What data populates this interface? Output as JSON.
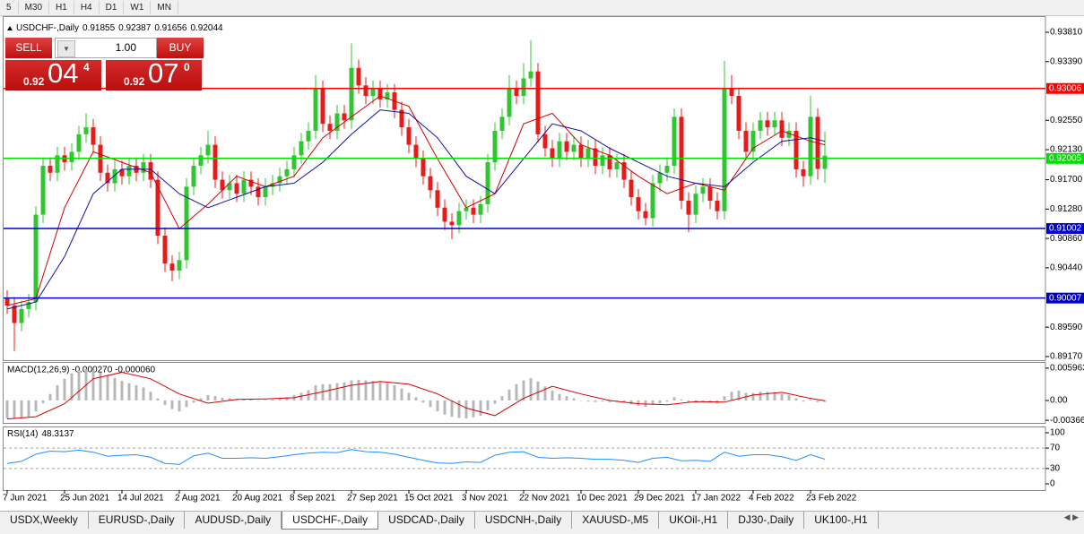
{
  "toolbar": {
    "timeframes": [
      "5",
      "M30",
      "H1",
      "H4",
      "D1",
      "W1",
      "MN"
    ]
  },
  "trade_panel": {
    "sell": "SELL",
    "buy": "BUY",
    "lots": "1.00",
    "sell_big": "0.92",
    "sell_pips": "04",
    "sell_point": "4",
    "buy_big": "0.92",
    "buy_pips": "07",
    "buy_point": "0"
  },
  "chart_data": [
    {
      "type": "candlestick",
      "title": "USDCHF-,Daily",
      "up_color": "#33c433",
      "down_color": "#e41c1c",
      "open": [
        0.9,
        0.899,
        0.8965,
        0.8985,
        0.8995,
        0.912,
        0.919,
        0.918,
        0.9205,
        0.9195,
        0.921,
        0.9235,
        0.9245,
        0.922,
        0.918,
        0.9165,
        0.9185,
        0.9175,
        0.919,
        0.918,
        0.9195,
        0.917,
        0.909,
        0.905,
        0.904,
        0.9055,
        0.916,
        0.919,
        0.9205,
        0.922,
        0.917,
        0.9155,
        0.9165,
        0.915,
        0.917,
        0.916,
        0.9145,
        0.916,
        0.9165,
        0.9175,
        0.9185,
        0.9205,
        0.9225,
        0.924,
        0.93,
        0.925,
        0.924,
        0.9265,
        0.9255,
        0.933,
        0.9305,
        0.929,
        0.93,
        0.9285,
        0.9295,
        0.927,
        0.9245,
        0.922,
        0.92,
        0.9175,
        0.9155,
        0.913,
        0.911,
        0.9105,
        0.9125,
        0.913,
        0.912,
        0.9135,
        0.9195,
        0.924,
        0.926,
        0.93,
        0.929,
        0.9315,
        0.9325,
        0.9235,
        0.9215,
        0.92,
        0.9225,
        0.921,
        0.922,
        0.92,
        0.9215,
        0.919,
        0.9205,
        0.9185,
        0.9195,
        0.917,
        0.9145,
        0.9125,
        0.9115,
        0.9165,
        0.918,
        0.919,
        0.926,
        0.914,
        0.912,
        0.915,
        0.916,
        0.914,
        0.9125,
        0.93,
        0.929,
        0.924,
        0.921,
        0.924,
        0.9255,
        0.9245,
        0.9255,
        0.923,
        0.924,
        0.9185,
        0.9175,
        0.926,
        0.91855
      ],
      "high": [
        0.9012,
        0.9002,
        0.8997,
        0.9007,
        0.9132,
        0.9202,
        0.9202,
        0.9217,
        0.9217,
        0.9222,
        0.9247,
        0.9265,
        0.9257,
        0.9232,
        0.9192,
        0.9197,
        0.9197,
        0.9202,
        0.9202,
        0.9207,
        0.9207,
        0.9182,
        0.9102,
        0.9062,
        0.9067,
        0.9172,
        0.9202,
        0.9217,
        0.924,
        0.9232,
        0.9182,
        0.9177,
        0.9177,
        0.9182,
        0.9182,
        0.9172,
        0.9172,
        0.9177,
        0.9187,
        0.9197,
        0.9217,
        0.9237,
        0.9252,
        0.932,
        0.9312,
        0.9262,
        0.9277,
        0.9277,
        0.9365,
        0.9342,
        0.9317,
        0.9312,
        0.9312,
        0.9307,
        0.9307,
        0.9282,
        0.9257,
        0.9232,
        0.9212,
        0.9187,
        0.9167,
        0.9142,
        0.9122,
        0.9137,
        0.9142,
        0.9142,
        0.9147,
        0.9207,
        0.9252,
        0.9272,
        0.932,
        0.9312,
        0.9337,
        0.937,
        0.9337,
        0.9247,
        0.9227,
        0.9237,
        0.9237,
        0.9232,
        0.9232,
        0.9227,
        0.9227,
        0.9217,
        0.9217,
        0.9207,
        0.9207,
        0.9182,
        0.9157,
        0.9137,
        0.9177,
        0.9192,
        0.9202,
        0.9272,
        0.9272,
        0.9152,
        0.9162,
        0.9172,
        0.9172,
        0.9152,
        0.934,
        0.932,
        0.9302,
        0.9252,
        0.9252,
        0.9267,
        0.9267,
        0.9267,
        0.9267,
        0.9252,
        0.9252,
        0.9197,
        0.929,
        0.9272,
        0.92387
      ],
      "low": [
        0.8978,
        0.8925,
        0.8953,
        0.8973,
        0.8983,
        0.9108,
        0.9168,
        0.9168,
        0.9183,
        0.9183,
        0.9198,
        0.9223,
        0.9208,
        0.9168,
        0.9153,
        0.9153,
        0.9163,
        0.9163,
        0.9168,
        0.9168,
        0.9158,
        0.9078,
        0.9038,
        0.9025,
        0.9028,
        0.9043,
        0.9148,
        0.9178,
        0.9193,
        0.9158,
        0.9143,
        0.9143,
        0.9138,
        0.9138,
        0.9148,
        0.9133,
        0.9133,
        0.9148,
        0.9153,
        0.9163,
        0.9173,
        0.9193,
        0.9213,
        0.9228,
        0.9238,
        0.9228,
        0.9228,
        0.9243,
        0.9243,
        0.9293,
        0.9278,
        0.9278,
        0.9273,
        0.9273,
        0.9258,
        0.9233,
        0.9208,
        0.9188,
        0.9163,
        0.9143,
        0.9118,
        0.9098,
        0.9085,
        0.9093,
        0.9113,
        0.9108,
        0.9108,
        0.9123,
        0.9183,
        0.9228,
        0.9248,
        0.9278,
        0.9278,
        0.9303,
        0.9223,
        0.9203,
        0.9188,
        0.9188,
        0.9198,
        0.9198,
        0.9188,
        0.9188,
        0.9178,
        0.9178,
        0.9173,
        0.9173,
        0.9158,
        0.9133,
        0.9113,
        0.9105,
        0.9103,
        0.9153,
        0.9168,
        0.9178,
        0.9128,
        0.9095,
        0.9108,
        0.9138,
        0.9128,
        0.9113,
        0.9113,
        0.9278,
        0.9228,
        0.9198,
        0.9198,
        0.9228,
        0.9233,
        0.9233,
        0.9218,
        0.9218,
        0.9173,
        0.916,
        0.9163,
        0.917,
        0.91656
      ],
      "close": [
        0.899,
        0.8965,
        0.8985,
        0.8995,
        0.912,
        0.919,
        0.918,
        0.9205,
        0.9195,
        0.921,
        0.9235,
        0.9245,
        0.922,
        0.918,
        0.9165,
        0.9185,
        0.9175,
        0.919,
        0.918,
        0.9195,
        0.917,
        0.909,
        0.905,
        0.904,
        0.9055,
        0.916,
        0.919,
        0.9205,
        0.922,
        0.917,
        0.9155,
        0.9165,
        0.915,
        0.917,
        0.916,
        0.9145,
        0.916,
        0.9165,
        0.9175,
        0.9185,
        0.9205,
        0.9225,
        0.924,
        0.93,
        0.925,
        0.924,
        0.9265,
        0.9255,
        0.933,
        0.9305,
        0.929,
        0.93,
        0.9285,
        0.9295,
        0.927,
        0.9245,
        0.922,
        0.92,
        0.9175,
        0.9155,
        0.913,
        0.911,
        0.9105,
        0.9125,
        0.913,
        0.912,
        0.9135,
        0.9195,
        0.924,
        0.926,
        0.93,
        0.929,
        0.9315,
        0.9325,
        0.9235,
        0.9215,
        0.92,
        0.9225,
        0.921,
        0.922,
        0.92,
        0.9215,
        0.919,
        0.9205,
        0.9185,
        0.9195,
        0.917,
        0.9145,
        0.9125,
        0.9115,
        0.9165,
        0.918,
        0.919,
        0.926,
        0.914,
        0.912,
        0.915,
        0.916,
        0.914,
        0.9125,
        0.93,
        0.929,
        0.924,
        0.921,
        0.924,
        0.9255,
        0.9245,
        0.9255,
        0.923,
        0.924,
        0.9185,
        0.9175,
        0.926,
        0.91855,
        0.92044
      ],
      "overlays": [
        {
          "color": "#d40000",
          "x": [
            0,
            4,
            8,
            12,
            16,
            20,
            24,
            28,
            32,
            36,
            40,
            44,
            48,
            52,
            56,
            60,
            64,
            68,
            72,
            76,
            80,
            84,
            88,
            92,
            96,
            100,
            104,
            108,
            112,
            114
          ],
          "values": [
            0.899,
            0.9,
            0.913,
            0.921,
            0.9195,
            0.918,
            0.91,
            0.9135,
            0.9175,
            0.916,
            0.9175,
            0.923,
            0.926,
            0.929,
            0.9275,
            0.92,
            0.913,
            0.915,
            0.925,
            0.9265,
            0.922,
            0.9205,
            0.9175,
            0.915,
            0.9165,
            0.9155,
            0.9215,
            0.924,
            0.9225,
            0.922
          ]
        },
        {
          "color": "#1010a0",
          "x": [
            0,
            4,
            8,
            12,
            16,
            20,
            24,
            28,
            32,
            36,
            40,
            44,
            48,
            52,
            56,
            60,
            64,
            68,
            72,
            76,
            80,
            84,
            88,
            92,
            96,
            100,
            104,
            108,
            112,
            114
          ],
          "values": [
            0.8985,
            0.8995,
            0.906,
            0.915,
            0.9185,
            0.9185,
            0.915,
            0.913,
            0.9145,
            0.916,
            0.9165,
            0.9195,
            0.9235,
            0.927,
            0.9265,
            0.923,
            0.9175,
            0.915,
            0.92,
            0.925,
            0.924,
            0.9215,
            0.9195,
            0.9175,
            0.9165,
            0.916,
            0.9195,
            0.9225,
            0.923,
            0.9225
          ]
        }
      ],
      "hlines": [
        {
          "value": 0.93006,
          "color": "#ff0000"
        },
        {
          "value": 0.92005,
          "color": "#00e000"
        },
        {
          "value": 0.91002,
          "color": "#0000c8"
        },
        {
          "value": 0.90007,
          "color": "#0000c8"
        }
      ],
      "xlim": [
        -0.5,
        144.75
      ],
      "xticks": [
        {
          "value": 0,
          "label": "7 Jun 2021"
        },
        {
          "value": 8,
          "label": "25 Jun 2021"
        },
        {
          "value": 16,
          "label": "14 Jul 2021"
        },
        {
          "value": 24,
          "label": "2 Aug 2021"
        },
        {
          "value": 32,
          "label": "20 Aug 2021"
        },
        {
          "value": 40,
          "label": "8 Sep 2021"
        },
        {
          "value": 48,
          "label": "27 Sep 2021"
        },
        {
          "value": 56,
          "label": "15 Oct 2021"
        },
        {
          "value": 64,
          "label": "3 Nov 2021"
        },
        {
          "value": 72,
          "label": "22 Nov 2021"
        },
        {
          "value": 80,
          "label": "10 Dec 2021"
        },
        {
          "value": 88,
          "label": "29 Dec 2021"
        },
        {
          "value": 96,
          "label": "17 Jan 2022"
        },
        {
          "value": 104,
          "label": "4 Feb 2022"
        },
        {
          "value": 112,
          "label": "23 Feb 2022"
        }
      ],
      "ylim": [
        0.89118,
        0.94041
      ],
      "yticks": [
        {
          "value": 0.9381,
          "label": "0.93810"
        },
        {
          "value": 0.9339,
          "label": "0.93390"
        },
        {
          "value": 0.9255,
          "label": "0.92550"
        },
        {
          "value": 0.9213,
          "label": "0.92130"
        },
        {
          "value": 0.917,
          "label": "0.91700"
        },
        {
          "value": 0.9128,
          "label": "0.91280"
        },
        {
          "value": 0.9086,
          "label": "0.90860"
        },
        {
          "value": 0.9044,
          "label": "0.90440"
        },
        {
          "value": 0.8959,
          "label": "0.89590"
        },
        {
          "value": 0.8917,
          "label": "0.89170"
        }
      ]
    },
    {
      "type": "macd",
      "title": "MACD(12,26,9) -0.000270 -0.000060",
      "color": "#b8b8b8",
      "values": [
        -0.0033,
        -0.0033,
        -0.0032,
        -0.003,
        -0.002,
        -0.0005,
        0.0012,
        0.0028,
        0.004,
        0.005,
        0.0056,
        0.0058,
        0.0057,
        0.0052,
        0.0046,
        0.0042,
        0.0036,
        0.0032,
        0.0028,
        0.0024,
        0.0016,
        0.0004,
        -0.0008,
        -0.0016,
        -0.002,
        -0.0012,
        -0.0004,
        0.0004,
        0.001,
        0.0008,
        0.0005,
        0.0004,
        0.0002,
        0.0003,
        0.0002,
        0.0,
        0.0001,
        0.0002,
        0.0004,
        0.0006,
        0.001,
        0.0014,
        0.0019,
        0.0028,
        0.003,
        0.003,
        0.0032,
        0.0033,
        0.0037,
        0.0038,
        0.0037,
        0.0036,
        0.0034,
        0.0032,
        0.0028,
        0.0022,
        0.0014,
        0.0006,
        -0.0004,
        -0.0012,
        -0.002,
        -0.0026,
        -0.003,
        -0.0032,
        -0.0033,
        -0.0031,
        -0.0028,
        -0.0018,
        -0.0006,
        0.0008,
        0.002,
        0.003,
        0.0037,
        0.0041,
        0.0035,
        0.0026,
        0.0018,
        0.0012,
        0.0008,
        0.0004,
        0.0,
        -0.0002,
        -0.0003,
        -0.0002,
        -0.0003,
        -0.0002,
        -0.0004,
        -0.0007,
        -0.001,
        -0.0012,
        -0.0008,
        -0.0005,
        -0.0002,
        0.0006,
        0.0002,
        -0.0004,
        -0.0004,
        -0.0003,
        -0.0004,
        -0.0006,
        0.0008,
        0.0016,
        0.0018,
        0.0014,
        0.0014,
        0.0016,
        0.0016,
        0.0015,
        0.0012,
        0.001,
        0.0004,
        -0.0002,
        0.0002,
        -0.0003,
        -0.00027
      ],
      "signal": {
        "color": "#d40000",
        "x": [
          0,
          4,
          8,
          12,
          16,
          20,
          24,
          28,
          32,
          36,
          40,
          44,
          48,
          52,
          56,
          60,
          64,
          68,
          72,
          76,
          80,
          84,
          88,
          92,
          96,
          100,
          104,
          108,
          112,
          114
        ],
        "values": [
          -0.0034,
          -0.003,
          -0.0006,
          0.004,
          0.0052,
          0.004,
          0.0012,
          -0.0005,
          0.0002,
          0.0003,
          0.0005,
          0.0016,
          0.0028,
          0.0035,
          0.003,
          0.0012,
          -0.0014,
          -0.0028,
          0.0004,
          0.0026,
          0.0012,
          0.0,
          -0.0006,
          -0.0008,
          -0.0002,
          -0.0003,
          0.001,
          0.0015,
          0.0004,
          -6e-05
        ]
      },
      "ylim": [
        -0.0043,
        0.0071
      ],
      "yticks": [
        0.005963,
        {
          "value": 0,
          "label": "0.00"
        },
        -0.003664
      ]
    },
    {
      "type": "line",
      "title": "RSI(14)",
      "color": "#1e90ff",
      "x": [
        0,
        2,
        4,
        6,
        8,
        10,
        12,
        14,
        16,
        18,
        20,
        22,
        24,
        26,
        28,
        30,
        32,
        34,
        36,
        38,
        40,
        42,
        44,
        46,
        48,
        50,
        52,
        54,
        56,
        58,
        60,
        62,
        64,
        66,
        68,
        70,
        72,
        74,
        76,
        78,
        80,
        82,
        84,
        86,
        88,
        90,
        92,
        94,
        96,
        98,
        100,
        102,
        104,
        106,
        108,
        110,
        112,
        114
      ],
      "values": [
        40,
        44,
        58,
        64,
        63,
        66,
        62,
        54,
        56,
        57,
        52,
        40,
        38,
        55,
        60,
        50,
        50,
        51,
        50,
        53,
        57,
        60,
        62,
        61,
        67,
        63,
        62,
        58,
        52,
        46,
        41,
        40,
        43,
        42,
        56,
        62,
        63,
        52,
        50,
        51,
        50,
        48,
        48,
        46,
        42,
        50,
        52,
        45,
        46,
        44,
        62,
        54,
        57,
        57,
        53,
        46,
        57,
        48.3137
      ],
      "levels": [
        70,
        30
      ],
      "ylim": [
        -12.3,
        112.3
      ],
      "yticks": [
        100,
        70,
        30,
        0
      ]
    }
  ],
  "tabs": {
    "items": [
      "USDX,Weekly",
      "EURUSD-,Daily",
      "AUDUSD-,Daily",
      "USDCHF-,Daily",
      "USDCAD-,Daily",
      "USDCNH-,Daily",
      "XAUUSD-,M5",
      "UKOil-,H1",
      "DJ30-,Daily",
      "UK100-,H1"
    ],
    "active": 3
  }
}
